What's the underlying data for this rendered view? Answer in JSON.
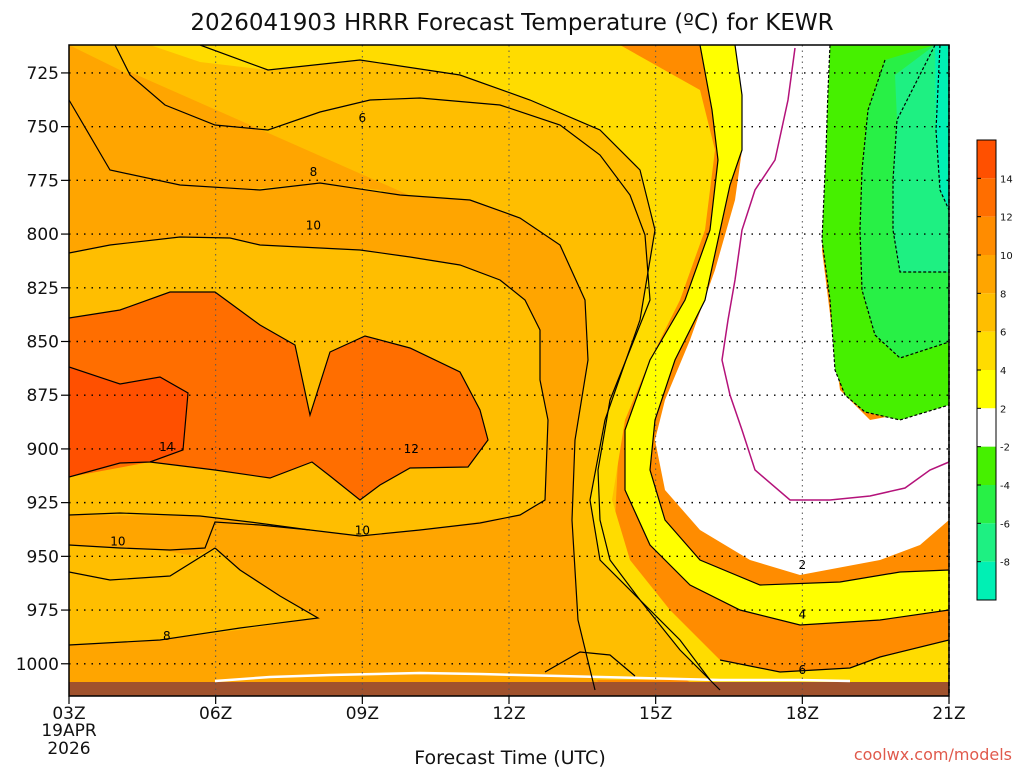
{
  "chart_data": {
    "type": "contour",
    "title": "2026041903 HRRR Forecast Temperature (ºC) for KEWR",
    "xlabel": "Forecast Time (UTC)",
    "x_ticks": [
      "03Z",
      "06Z",
      "09Z",
      "12Z",
      "15Z",
      "18Z",
      "21Z"
    ],
    "x_hours_utc": [
      3,
      6,
      9,
      12,
      15,
      18,
      21
    ],
    "start_date_lines": [
      "19APR",
      "2026"
    ],
    "ylabel": "",
    "y_ticks": [
      725,
      750,
      775,
      800,
      825,
      850,
      875,
      900,
      925,
      950,
      975,
      1000
    ],
    "y_reversed": true,
    "ylim": [
      1015,
      712
    ],
    "grid": "dotted",
    "contour_labels": [
      {
        "value": "6",
        "hour": 9,
        "pressure": 746
      },
      {
        "value": "8",
        "hour": 8,
        "pressure": 771
      },
      {
        "value": "10",
        "hour": 8,
        "pressure": 796
      },
      {
        "value": "14",
        "hour": 5,
        "pressure": 899
      },
      {
        "value": "12",
        "hour": 10,
        "pressure": 900
      },
      {
        "value": "10",
        "hour": 4,
        "pressure": 943
      },
      {
        "value": "10",
        "hour": 9,
        "pressure": 938
      },
      {
        "value": "8",
        "hour": 5,
        "pressure": 987
      },
      {
        "value": "2",
        "hour": 18,
        "pressure": 954
      },
      {
        "value": "4",
        "hour": 18,
        "pressure": 977
      },
      {
        "value": "6",
        "hour": 18,
        "pressure": 1003
      }
    ],
    "colorbar": {
      "labels": [
        "14",
        "12",
        "10",
        "8",
        "6",
        "4",
        "2",
        "-2",
        "-4",
        "-6",
        "-8"
      ],
      "colors": [
        "#ff5000",
        "#ff6e00",
        "#ff8c00",
        "#ffa500",
        "#ffbe00",
        "#ffdc00",
        "#ffff00",
        "#ffffff",
        "#46f000",
        "#28f046",
        "#1ef082",
        "#00f0b4"
      ]
    },
    "watermark": "coolwx.com/models"
  }
}
